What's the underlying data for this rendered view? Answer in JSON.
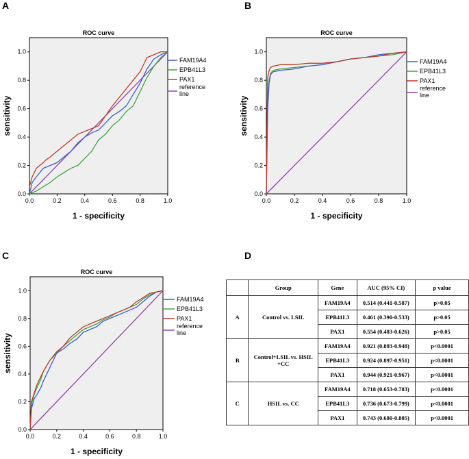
{
  "panels": [
    "A",
    "B",
    "C",
    "D"
  ],
  "chart_data": [
    {
      "type": "line",
      "panel": "A",
      "title": "ROC curve",
      "xlabel": "1 - specificity",
      "ylabel": "sensitivity",
      "xlim": [
        0,
        1
      ],
      "ylim": [
        0,
        1.1
      ],
      "xticks": [
        "0.0",
        "0.2",
        "0.4",
        "0.6",
        "0.8",
        "1.0"
      ],
      "yticks": [
        "0.0",
        "0.2",
        "0.4",
        "0.6",
        "0.8",
        "1.0"
      ],
      "legend_position": "right",
      "series": [
        {
          "name": "FAM19A4",
          "color": "#3a5fcd",
          "x": [
            0,
            0.02,
            0.05,
            0.1,
            0.15,
            0.2,
            0.3,
            0.35,
            0.4,
            0.45,
            0.5,
            0.55,
            0.6,
            0.65,
            0.7,
            0.72,
            0.75,
            0.8,
            0.85,
            0.9,
            0.95,
            1.0
          ],
          "y": [
            0,
            0.08,
            0.12,
            0.18,
            0.2,
            0.22,
            0.3,
            0.36,
            0.4,
            0.43,
            0.45,
            0.5,
            0.55,
            0.58,
            0.62,
            0.65,
            0.7,
            0.78,
            0.88,
            0.95,
            0.98,
            1.0
          ]
        },
        {
          "name": "EPB41L3",
          "color": "#3aa83a",
          "x": [
            0,
            0.05,
            0.1,
            0.15,
            0.2,
            0.25,
            0.3,
            0.35,
            0.4,
            0.45,
            0.5,
            0.55,
            0.6,
            0.65,
            0.7,
            0.75,
            0.8,
            0.85,
            0.9,
            0.95,
            1.0
          ],
          "y": [
            0,
            0.02,
            0.05,
            0.08,
            0.12,
            0.15,
            0.18,
            0.2,
            0.25,
            0.3,
            0.38,
            0.42,
            0.48,
            0.52,
            0.58,
            0.62,
            0.72,
            0.82,
            0.9,
            0.96,
            1.0
          ]
        },
        {
          "name": "PAX1",
          "color": "#c0392b",
          "x": [
            0,
            0.02,
            0.05,
            0.1,
            0.12,
            0.15,
            0.2,
            0.25,
            0.3,
            0.35,
            0.4,
            0.45,
            0.5,
            0.55,
            0.6,
            0.65,
            0.7,
            0.75,
            0.8,
            0.82,
            0.85,
            0.9,
            0.95,
            1.0
          ],
          "y": [
            0.05,
            0.12,
            0.18,
            0.22,
            0.24,
            0.26,
            0.3,
            0.34,
            0.38,
            0.42,
            0.44,
            0.46,
            0.48,
            0.55,
            0.62,
            0.68,
            0.74,
            0.8,
            0.86,
            0.9,
            0.96,
            0.98,
            1.0,
            1.0
          ]
        },
        {
          "name": "reference line",
          "color": "#8e44ad",
          "x": [
            0,
            1
          ],
          "y": [
            0,
            1
          ]
        }
      ]
    },
    {
      "type": "line",
      "panel": "B",
      "title": "ROC curve",
      "xlabel": "1 - specificity",
      "ylabel": "sensitivity",
      "xlim": [
        0,
        1
      ],
      "ylim": [
        0,
        1.1
      ],
      "xticks": [
        "0.0",
        "0.2",
        "0.4",
        "0.6",
        "0.8",
        "1.0"
      ],
      "yticks": [
        "0.0",
        "0.2",
        "0.4",
        "0.6",
        "0.8",
        "1.0"
      ],
      "legend_position": "right",
      "series": [
        {
          "name": "FAM19A4",
          "color": "#3a5fcd",
          "x": [
            0,
            0.005,
            0.01,
            0.02,
            0.03,
            0.05,
            0.1,
            0.2,
            0.3,
            0.4,
            0.5,
            0.6,
            0.7,
            0.8,
            0.9,
            1.0
          ],
          "y": [
            0,
            0.3,
            0.6,
            0.78,
            0.84,
            0.86,
            0.87,
            0.88,
            0.9,
            0.91,
            0.93,
            0.95,
            0.96,
            0.98,
            0.99,
            1.0
          ]
        },
        {
          "name": "EPB41L3",
          "color": "#3aa83a",
          "x": [
            0,
            0.005,
            0.01,
            0.02,
            0.03,
            0.05,
            0.1,
            0.2,
            0.3,
            0.4,
            0.5,
            0.6,
            0.7,
            0.8,
            0.9,
            1.0
          ],
          "y": [
            0,
            0.35,
            0.65,
            0.8,
            0.85,
            0.87,
            0.88,
            0.89,
            0.9,
            0.91,
            0.93,
            0.95,
            0.96,
            0.97,
            0.98,
            1.0
          ]
        },
        {
          "name": "PAX1",
          "color": "#c0392b",
          "x": [
            0,
            0.005,
            0.01,
            0.02,
            0.03,
            0.05,
            0.1,
            0.2,
            0.3,
            0.4,
            0.5,
            0.6,
            0.7,
            0.8,
            0.9,
            1.0
          ],
          "y": [
            0,
            0.5,
            0.82,
            0.87,
            0.89,
            0.9,
            0.91,
            0.91,
            0.92,
            0.92,
            0.93,
            0.95,
            0.96,
            0.97,
            0.99,
            1.0
          ]
        },
        {
          "name": "reference line",
          "color": "#8e44ad",
          "x": [
            0,
            1
          ],
          "y": [
            0,
            1
          ]
        }
      ]
    },
    {
      "type": "line",
      "panel": "C",
      "title": "ROC curve",
      "xlabel": "1 - specificity",
      "ylabel": "sensitivity",
      "xlim": [
        0,
        1
      ],
      "ylim": [
        0,
        1.1
      ],
      "xticks": [
        "0.0",
        "0.2",
        "0.4",
        "0.6",
        "0.8",
        "1.0"
      ],
      "yticks": [
        "0.0",
        "0.2",
        "0.4",
        "0.6",
        "0.8",
        "1.0"
      ],
      "legend_position": "right",
      "series": [
        {
          "name": "FAM19A4",
          "color": "#3a5fcd",
          "x": [
            0,
            0.01,
            0.03,
            0.05,
            0.08,
            0.1,
            0.15,
            0.2,
            0.25,
            0.3,
            0.35,
            0.4,
            0.45,
            0.5,
            0.55,
            0.6,
            0.65,
            0.7,
            0.75,
            0.8,
            0.85,
            0.9,
            0.95,
            1.0
          ],
          "y": [
            0,
            0.15,
            0.22,
            0.25,
            0.3,
            0.35,
            0.45,
            0.55,
            0.58,
            0.62,
            0.65,
            0.7,
            0.72,
            0.74,
            0.78,
            0.8,
            0.82,
            0.84,
            0.86,
            0.88,
            0.92,
            0.96,
            0.99,
            1.0
          ]
        },
        {
          "name": "EPB41L3",
          "color": "#3aa83a",
          "x": [
            0,
            0.01,
            0.03,
            0.05,
            0.08,
            0.1,
            0.15,
            0.2,
            0.25,
            0.3,
            0.35,
            0.4,
            0.45,
            0.5,
            0.55,
            0.6,
            0.65,
            0.7,
            0.75,
            0.8,
            0.85,
            0.9,
            0.95,
            1.0
          ],
          "y": [
            0,
            0.18,
            0.25,
            0.3,
            0.36,
            0.42,
            0.5,
            0.55,
            0.6,
            0.64,
            0.68,
            0.72,
            0.74,
            0.76,
            0.79,
            0.81,
            0.84,
            0.86,
            0.88,
            0.9,
            0.94,
            0.97,
            0.99,
            1.0
          ]
        },
        {
          "name": "PAX1",
          "color": "#c0392b",
          "x": [
            0,
            0.01,
            0.03,
            0.05,
            0.08,
            0.1,
            0.15,
            0.2,
            0.25,
            0.3,
            0.35,
            0.4,
            0.45,
            0.5,
            0.55,
            0.6,
            0.65,
            0.7,
            0.75,
            0.8,
            0.85,
            0.9,
            0.95,
            1.0
          ],
          "y": [
            0,
            0.2,
            0.26,
            0.32,
            0.38,
            0.42,
            0.5,
            0.56,
            0.6,
            0.66,
            0.7,
            0.74,
            0.76,
            0.78,
            0.8,
            0.82,
            0.84,
            0.86,
            0.88,
            0.92,
            0.95,
            0.98,
            0.99,
            1.0
          ]
        },
        {
          "name": "reference line",
          "color": "#8e44ad",
          "x": [
            0,
            1
          ],
          "y": [
            0,
            1
          ]
        }
      ]
    },
    {
      "type": "table",
      "panel": "D",
      "columns": [
        "",
        "Group",
        "Gene",
        "AUC (95% CI)",
        "p value"
      ],
      "groups": [
        {
          "id": "A",
          "name": "Control vs. LSIL",
          "rows": [
            {
              "gene": "FAM19A4",
              "auc": "0.514 (0.441-0.587)",
              "p": "p>0.05"
            },
            {
              "gene": "EPB41L3",
              "auc": "0.461 (0.390-0.533)",
              "p": "p>0.05"
            },
            {
              "gene": "PAX1",
              "auc": "0.554 (0.483-0.626)",
              "p": "p>0.05"
            }
          ]
        },
        {
          "id": "B",
          "name": "Control+LSIL vs. HSIL +CC",
          "rows": [
            {
              "gene": "FAM19A4",
              "auc": "0.921 (0.893-0.948)",
              "p": "p<0.0001"
            },
            {
              "gene": "EPB41L3",
              "auc": "0.924 (0.897-0.951)",
              "p": "p<0.0001"
            },
            {
              "gene": "PAX1",
              "auc": "0.944 (0.921-0.967)",
              "p": "p<0.0001"
            }
          ]
        },
        {
          "id": "C",
          "name": "HSIL vs. CC",
          "rows": [
            {
              "gene": "FAM19A4",
              "auc": "0.718 (0.653-0.783)",
              "p": "p<0.0001"
            },
            {
              "gene": "EPB41L3",
              "auc": "0.736 (0.673-0.799)",
              "p": "p<0.0001"
            },
            {
              "gene": "PAX1",
              "auc": "0.743 (0.680-0.805)",
              "p": "p<0.0001"
            }
          ]
        }
      ]
    }
  ]
}
